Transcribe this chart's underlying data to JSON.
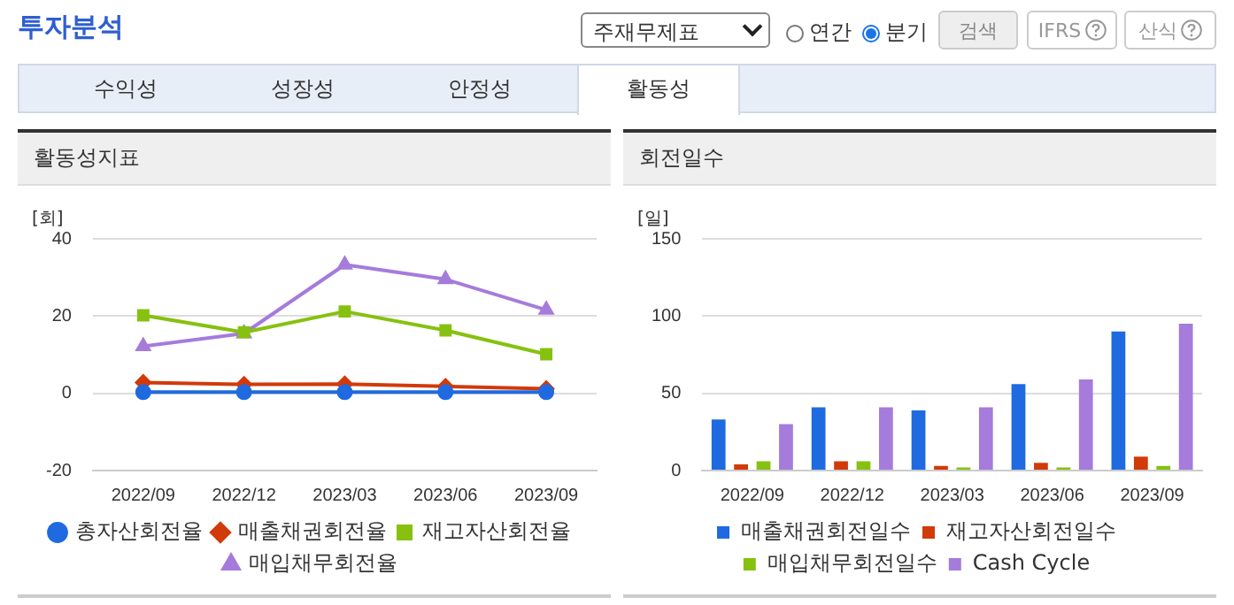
{
  "chart_data": [
    {
      "type": "line",
      "title": "활동성지표",
      "ylabel": "[회]",
      "categories": [
        "2022/09",
        "2022/12",
        "2023/03",
        "2023/06",
        "2023/09"
      ],
      "series": [
        {
          "name": "총자산회전율",
          "color": "#1f6ae0",
          "marker": "circle",
          "values": [
            0.3,
            0.3,
            0.3,
            0.3,
            0.3
          ]
        },
        {
          "name": "매출채권회전율",
          "color": "#d13a0a",
          "marker": "diamond",
          "values": [
            2.8,
            2.3,
            2.4,
            1.8,
            1.2
          ]
        },
        {
          "name": "재고자산회전율",
          "color": "#86c110",
          "marker": "square",
          "values": [
            20.2,
            15.8,
            21.2,
            16.3,
            10.1
          ]
        },
        {
          "name": "매입채무회전율",
          "color": "#a57bdb",
          "marker": "triangle",
          "values": [
            12.2,
            15.5,
            33.3,
            29.5,
            21.6
          ]
        }
      ],
      "ylim": [
        -20,
        40
      ],
      "yticks": [
        -20,
        0,
        20,
        40
      ],
      "grid": "y",
      "legend": "bottom",
      "annotations": [
        "투자분석",
        "주재무제표",
        "연간",
        "분기",
        "검색",
        "IFRS",
        "산식",
        "수익성",
        "성장성",
        "안정성",
        "활동성"
      ]
    },
    {
      "type": "bar",
      "title": "회전일수",
      "ylabel": "[일]",
      "categories": [
        "2022/09",
        "2022/12",
        "2023/03",
        "2023/06",
        "2023/09"
      ],
      "series": [
        {
          "name": "매출채권회전일수",
          "color": "#1f6ae0",
          "values": [
            33,
            41,
            39,
            56,
            90
          ]
        },
        {
          "name": "재고자산회전일수",
          "color": "#d13a0a",
          "values": [
            4,
            6,
            3,
            5,
            9
          ]
        },
        {
          "name": "매입채무회전일수",
          "color": "#86c110",
          "values": [
            6,
            6,
            2,
            2,
            3
          ]
        },
        {
          "name": "Cash Cycle",
          "color": "#a57bdb",
          "values": [
            30,
            41,
            41,
            59,
            95
          ]
        }
      ],
      "ylim": [
        0,
        150
      ],
      "yticks": [
        0,
        50,
        100,
        150
      ],
      "grid": "y",
      "legend": "bottom"
    }
  ]
}
